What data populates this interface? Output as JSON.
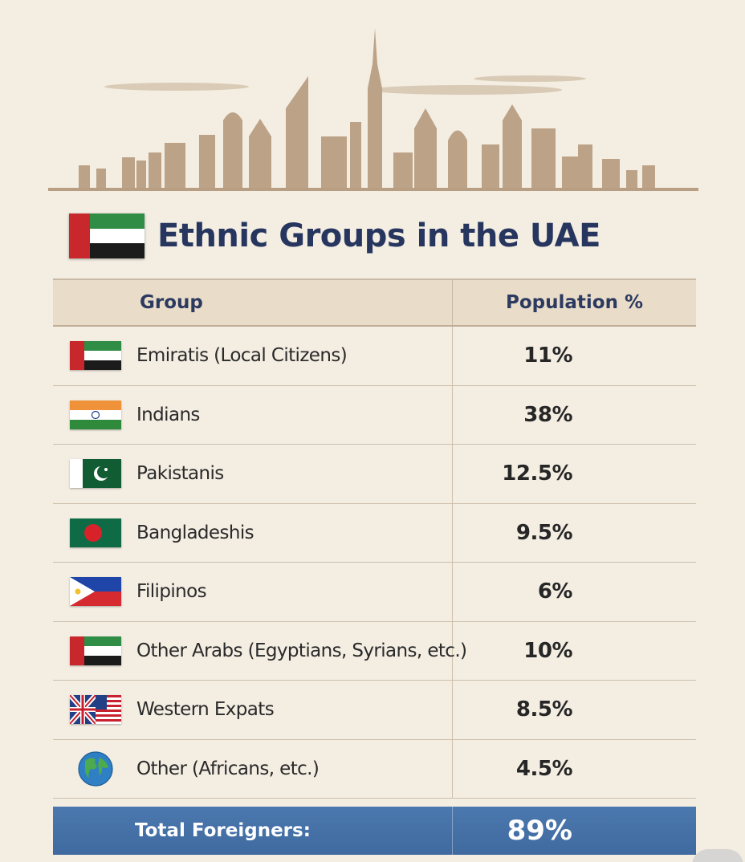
{
  "title": "Ethnic Groups in the UAE",
  "table": {
    "headers": {
      "group": "Group",
      "population": "Population %"
    },
    "rows": [
      {
        "flag": "uae-flag-icon",
        "group": "Emiratis (Local Citizens)",
        "population": "11%"
      },
      {
        "flag": "india-flag-icon",
        "group": "Indians",
        "population": "38%"
      },
      {
        "flag": "pakistan-flag-icon",
        "group": "Pakistanis",
        "population": "12.5%"
      },
      {
        "flag": "bangladesh-flag-icon",
        "group": "Bangladeshis",
        "population": "9.5%"
      },
      {
        "flag": "philippines-flag-icon",
        "group": "Filipinos",
        "population": "6%"
      },
      {
        "flag": "uae-flag-icon",
        "group": "Other Arabs (Egyptians, Syrians, etc.)",
        "population": "10%"
      },
      {
        "flag": "uk-us-flag-icon",
        "group": "Western Expats",
        "population": "8.5%"
      },
      {
        "flag": "globe-icon",
        "group": "Other (Africans, etc.)",
        "population": "4.5%"
      }
    ],
    "total": {
      "label": "Total Foreigners:",
      "value": "89%"
    }
  },
  "colors": {
    "background": "#f3ede2",
    "title": "#27365e",
    "header_bg": "#e9dcc8",
    "total_bg": "#4574a8"
  }
}
